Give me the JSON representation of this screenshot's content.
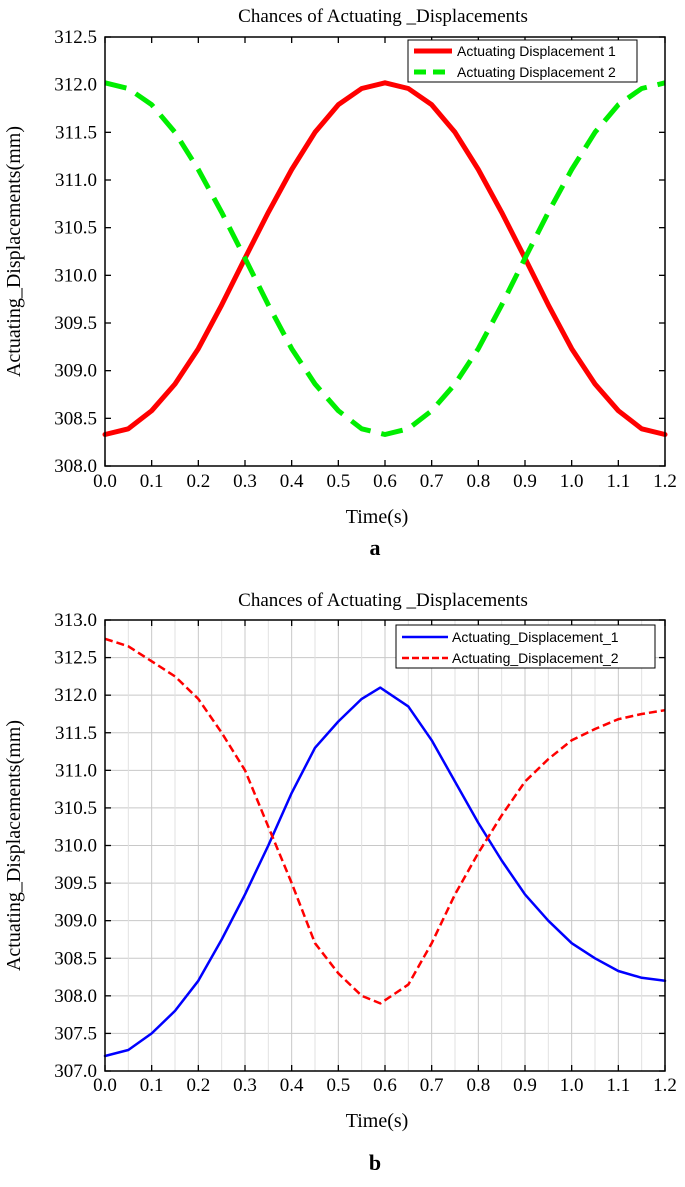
{
  "chart_data": [
    {
      "panel_label": "a",
      "type": "line",
      "title": "Chances of Actuating _Displacements",
      "xlabel": "Time(s)",
      "ylabel": "Actuating_Displacements(mm)",
      "xlim": [
        0.0,
        1.2
      ],
      "ylim": [
        308.0,
        312.5
      ],
      "xticks": [
        0.0,
        0.1,
        0.2,
        0.3,
        0.4,
        0.5,
        0.6,
        0.7,
        0.8,
        0.9,
        1.0,
        1.1,
        1.2
      ],
      "yticks": [
        308.0,
        308.5,
        309.0,
        309.5,
        310.0,
        310.5,
        311.0,
        311.5,
        312.0,
        312.5
      ],
      "tick_decimals": 1,
      "grid": false,
      "legend_position": "top-right",
      "x": [
        0.0,
        0.05,
        0.1,
        0.15,
        0.2,
        0.25,
        0.3,
        0.35,
        0.4,
        0.45,
        0.5,
        0.55,
        0.6,
        0.65,
        0.7,
        0.75,
        0.8,
        0.85,
        0.9,
        0.95,
        1.0,
        1.05,
        1.1,
        1.15,
        1.2
      ],
      "series": [
        {
          "name": "Actuating Displacement 1",
          "color": "#ff0000",
          "style": "solid",
          "width": 5,
          "values": [
            308.33,
            308.39,
            308.58,
            308.86,
            309.23,
            309.69,
            310.18,
            310.66,
            311.11,
            311.5,
            311.79,
            311.96,
            312.02,
            311.96,
            311.79,
            311.5,
            311.11,
            310.66,
            310.18,
            309.69,
            309.23,
            308.86,
            308.58,
            308.39,
            308.33
          ]
        },
        {
          "name": "Actuating Displacement 2",
          "color": "#00ee00",
          "style": "dash",
          "width": 5,
          "values": [
            312.02,
            311.96,
            311.79,
            311.5,
            311.11,
            310.66,
            310.18,
            309.69,
            309.23,
            308.86,
            308.58,
            308.39,
            308.33,
            308.39,
            308.58,
            308.86,
            309.23,
            309.69,
            310.18,
            310.66,
            311.11,
            311.5,
            311.79,
            311.96,
            312.02
          ]
        }
      ]
    },
    {
      "panel_label": "b",
      "type": "line",
      "title": "Chances of Actuating _Displacements",
      "xlabel": "Time(s)",
      "ylabel": "Actuating_Displacements(mm)",
      "xlim": [
        0.0,
        1.2
      ],
      "ylim": [
        307.0,
        313.0
      ],
      "xticks": [
        0.0,
        0.1,
        0.2,
        0.3,
        0.4,
        0.5,
        0.6,
        0.7,
        0.8,
        0.9,
        1.0,
        1.1,
        1.2
      ],
      "yticks": [
        307.0,
        307.5,
        308.0,
        308.5,
        309.0,
        309.5,
        310.0,
        310.5,
        311.0,
        311.5,
        312.0,
        312.5,
        313.0
      ],
      "tick_decimals": 1,
      "grid": true,
      "legend_position": "top-right",
      "x": [
        0.0,
        0.05,
        0.1,
        0.15,
        0.2,
        0.25,
        0.3,
        0.35,
        0.4,
        0.45,
        0.5,
        0.55,
        0.59,
        0.65,
        0.7,
        0.75,
        0.8,
        0.85,
        0.9,
        0.95,
        1.0,
        1.05,
        1.1,
        1.15,
        1.2
      ],
      "series": [
        {
          "name": "Actuating_Displacement_1",
          "color": "#0000ff",
          "style": "solid",
          "width": 2.5,
          "values": [
            307.2,
            307.28,
            307.5,
            307.8,
            308.2,
            308.75,
            309.35,
            310.0,
            310.7,
            311.3,
            311.65,
            311.95,
            312.1,
            311.85,
            311.4,
            310.85,
            310.3,
            309.8,
            309.35,
            309.0,
            308.7,
            308.5,
            308.33,
            308.24,
            308.2
          ]
        },
        {
          "name": "Actuating_Displacement_2",
          "color": "#ff0000",
          "style": "dash",
          "width": 2.5,
          "values": [
            312.75,
            312.65,
            312.45,
            312.25,
            311.95,
            311.5,
            311.0,
            310.25,
            309.5,
            308.7,
            308.3,
            308.0,
            307.9,
            308.15,
            308.7,
            309.35,
            309.9,
            310.4,
            310.85,
            311.15,
            311.4,
            311.55,
            311.68,
            311.75,
            311.8
          ]
        }
      ]
    }
  ]
}
